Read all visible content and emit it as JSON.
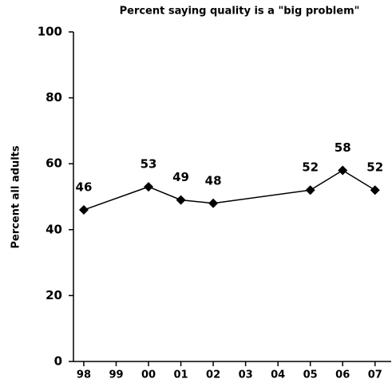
{
  "chart_data": {
    "type": "line",
    "title": "Percent saying quality is a \"big problem\"",
    "y_label": "Percent all adults",
    "x": [
      1998,
      2000,
      2001,
      2002,
      2005,
      2006,
      2007
    ],
    "series": [
      {
        "color": "#000000",
        "values": [
          46,
          53,
          49,
          48,
          52,
          58,
          52
        ]
      }
    ],
    "xlim": [
      1997.68,
      2007.5
    ],
    "xticks": [
      {
        "value": 1998,
        "label": "98"
      },
      {
        "value": 1999,
        "label": "99"
      },
      {
        "value": 2000,
        "label": "00"
      },
      {
        "value": 2001,
        "label": "01"
      },
      {
        "value": 2002,
        "label": "02"
      },
      {
        "value": 2003,
        "label": "03"
      },
      {
        "value": 2004,
        "label": "04"
      },
      {
        "value": 2005,
        "label": "05"
      },
      {
        "value": 2006,
        "label": "06"
      },
      {
        "value": 2007,
        "label": "07"
      }
    ],
    "ylim": [
      0,
      100
    ],
    "yticks": [
      0,
      20,
      40,
      60,
      80,
      100
    ]
  }
}
